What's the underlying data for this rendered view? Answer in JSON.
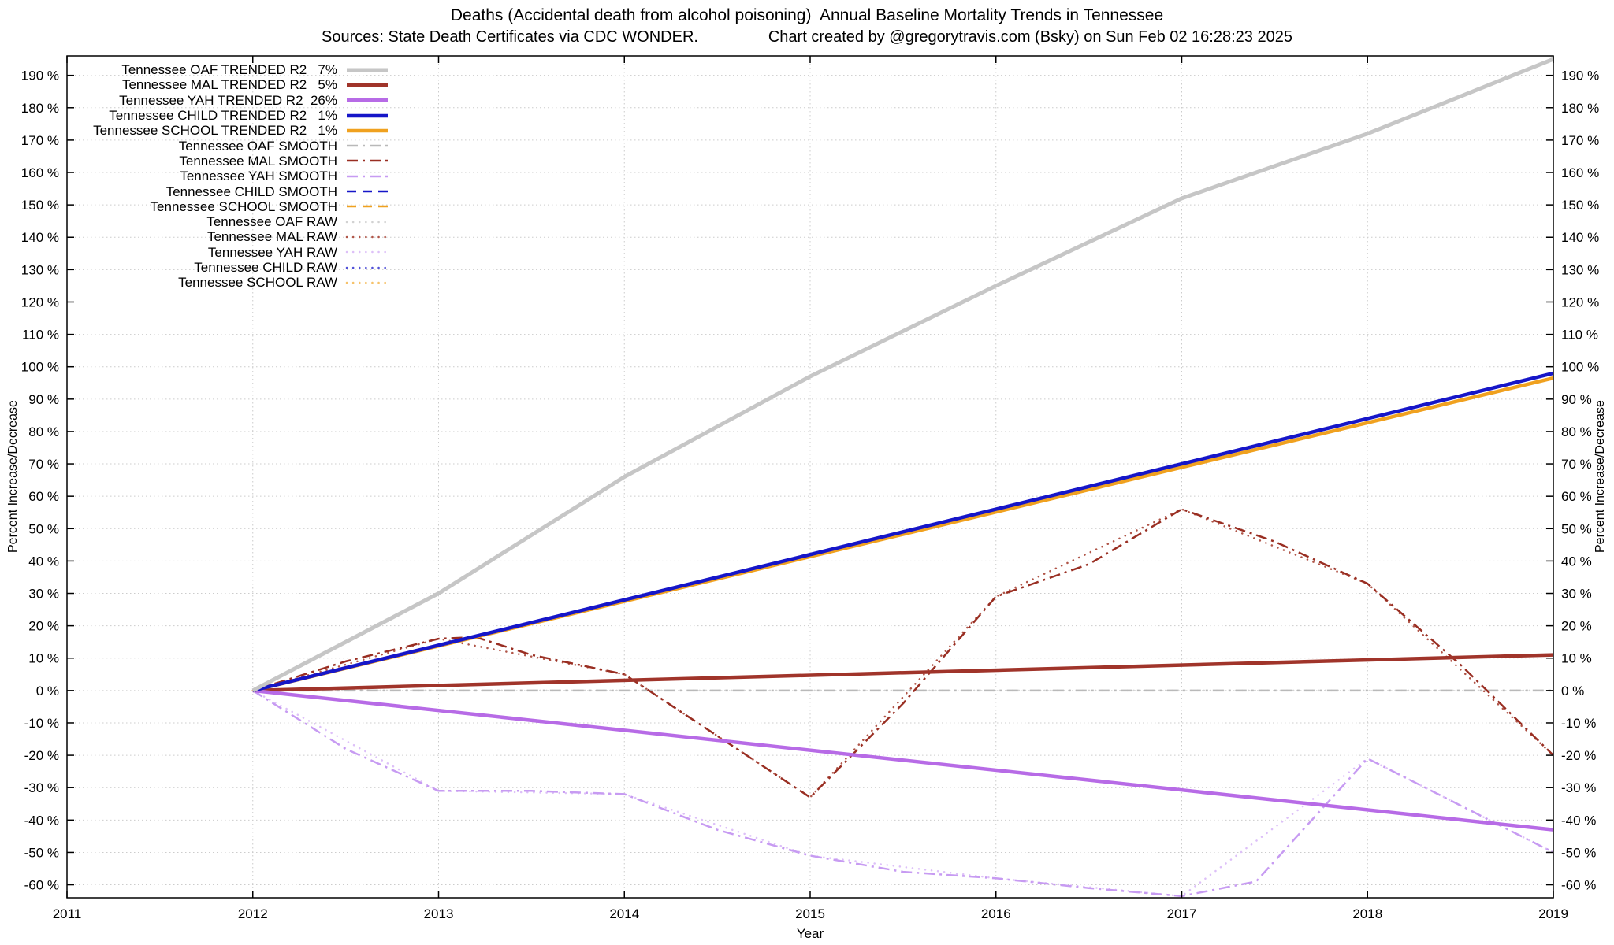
{
  "title": "Deaths (Accidental death from alcohol poisoning)  Annual Baseline Mortality Trends in Tennessee",
  "subtitle": "Sources: State Death Certificates via CDC WONDER.                Chart created by @gregorytravis.com (Bsky) on Sun Feb 02 16:28:23 2025",
  "chart_data": {
    "type": "line",
    "xlabel": "Year",
    "ylabel_left": "Percent Increase/Decrease",
    "ylabel_right": "Percent Increase/Decrease",
    "xlim": [
      2011,
      2019
    ],
    "ylim": [
      -64,
      196
    ],
    "x_ticks": [
      2011,
      2012,
      2013,
      2014,
      2015,
      2016,
      2017,
      2018,
      2019
    ],
    "y_ticks": [
      -60,
      -50,
      -40,
      -30,
      -20,
      -10,
      0,
      10,
      20,
      30,
      40,
      50,
      60,
      70,
      80,
      90,
      100,
      110,
      120,
      130,
      140,
      150,
      160,
      170,
      180,
      190
    ],
    "y_tick_suffix": " %",
    "grid": true,
    "grid_color": "#cccccc",
    "legend_position": "top-left",
    "series": [
      {
        "id": "oaf_trended",
        "legend": "Tennessee OAF TRENDED R2   7%",
        "color": "#c6c6c6",
        "style": "solid",
        "width": 5,
        "points": [
          [
            2012,
            0
          ],
          [
            2013,
            30
          ],
          [
            2014,
            66
          ],
          [
            2015,
            97
          ],
          [
            2016,
            125
          ],
          [
            2017,
            152
          ],
          [
            2018,
            172
          ],
          [
            2019,
            195
          ]
        ]
      },
      {
        "id": "mal_trended",
        "legend": "Tennessee MAL TRENDED R2   5%",
        "color": "#a0342a",
        "style": "solid",
        "width": 4.5,
        "points": [
          [
            2012,
            0
          ],
          [
            2019,
            11
          ]
        ]
      },
      {
        "id": "yah_trended",
        "legend": "Tennessee YAH TRENDED R2  26%",
        "color": "#b76be6",
        "style": "solid",
        "width": 4.5,
        "points": [
          [
            2012,
            0
          ],
          [
            2019,
            -43
          ]
        ]
      },
      {
        "id": "child_trended",
        "legend": "Tennessee CHILD TRENDED R2   1%",
        "color": "#1616c8",
        "style": "solid",
        "width": 4.5,
        "points": [
          [
            2012,
            0
          ],
          [
            2019,
            98
          ]
        ]
      },
      {
        "id": "school_trended",
        "legend": "Tennessee SCHOOL TRENDED R2   1%",
        "color": "#f0a11f",
        "style": "solid",
        "width": 4.5,
        "points": [
          [
            2012,
            0
          ],
          [
            2019,
            96.5
          ]
        ]
      },
      {
        "id": "oaf_smooth",
        "legend": "Tennessee OAF SMOOTH",
        "color": "#b9b9b9",
        "style": "dashdot",
        "width": 2.5,
        "points": [
          [
            2012,
            0
          ],
          [
            2019,
            0
          ]
        ]
      },
      {
        "id": "mal_smooth",
        "legend": "Tennessee MAL SMOOTH",
        "color": "#992e22",
        "style": "dashdot",
        "width": 2.5,
        "points": [
          [
            2012,
            0
          ],
          [
            2012.5,
            9
          ],
          [
            2013,
            16
          ],
          [
            2013.2,
            16.5
          ],
          [
            2013.5,
            11
          ],
          [
            2014,
            5
          ],
          [
            2014.5,
            -14
          ],
          [
            2015,
            -33
          ],
          [
            2015.5,
            -4
          ],
          [
            2016,
            29
          ],
          [
            2016.5,
            39
          ],
          [
            2017,
            56
          ],
          [
            2017.5,
            46
          ],
          [
            2018,
            33
          ],
          [
            2018.5,
            8
          ],
          [
            2019,
            -20
          ]
        ]
      },
      {
        "id": "yah_smooth",
        "legend": "Tennessee YAH SMOOTH",
        "color": "#c79bf2",
        "style": "dashdot",
        "width": 2.5,
        "points": [
          [
            2012,
            0
          ],
          [
            2012.5,
            -18
          ],
          [
            2013,
            -31
          ],
          [
            2013.5,
            -31
          ],
          [
            2014,
            -32
          ],
          [
            2014.5,
            -43
          ],
          [
            2015,
            -51
          ],
          [
            2015.5,
            -56
          ],
          [
            2016,
            -58
          ],
          [
            2016.5,
            -61
          ],
          [
            2017,
            -63.5
          ],
          [
            2017.4,
            -59
          ],
          [
            2018,
            -21
          ],
          [
            2019,
            -50
          ]
        ]
      },
      {
        "id": "child_smooth",
        "legend": "Tennessee CHILD SMOOTH",
        "color": "#1616c8",
        "style": "dash",
        "width": 2.5,
        "points": [
          [
            2012,
            0
          ],
          [
            2019,
            98
          ]
        ]
      },
      {
        "id": "school_smooth",
        "legend": "Tennessee SCHOOL SMOOTH",
        "color": "#f0a11f",
        "style": "dash",
        "width": 2.5,
        "points": [
          [
            2012,
            0
          ],
          [
            2019,
            96.5
          ]
        ]
      },
      {
        "id": "oaf_raw",
        "legend": "Tennessee OAF RAW",
        "color": "#d2d2d2",
        "style": "dot",
        "width": 2.5,
        "points": [
          [
            2012,
            0
          ],
          [
            2019,
            0
          ]
        ]
      },
      {
        "id": "mal_raw",
        "legend": "Tennessee MAL RAW",
        "color": "#b05548",
        "style": "dot",
        "width": 2.5,
        "points": [
          [
            2012,
            0
          ],
          [
            2013,
            16
          ],
          [
            2014,
            5
          ],
          [
            2015,
            -33
          ],
          [
            2016,
            29
          ],
          [
            2017,
            56
          ],
          [
            2018,
            33
          ],
          [
            2019,
            -20
          ]
        ]
      },
      {
        "id": "yah_raw",
        "legend": "Tennessee YAH RAW",
        "color": "#ddc0f8",
        "style": "dot",
        "width": 2.5,
        "points": [
          [
            2012,
            0
          ],
          [
            2013,
            -31
          ],
          [
            2014,
            -32
          ],
          [
            2015,
            -51
          ],
          [
            2016,
            -58
          ],
          [
            2017,
            -63.5
          ],
          [
            2018,
            -21
          ],
          [
            2019,
            -50
          ]
        ]
      },
      {
        "id": "child_raw",
        "legend": "Tennessee CHILD RAW",
        "color": "#5050d8",
        "style": "dot",
        "width": 2.5,
        "points": [
          [
            2012,
            0
          ],
          [
            2019,
            98
          ]
        ]
      },
      {
        "id": "school_raw",
        "legend": "Tennessee SCHOOL RAW",
        "color": "#f6c26a",
        "style": "dot",
        "width": 2.5,
        "points": [
          [
            2012,
            0
          ],
          [
            2019,
            96.5
          ]
        ]
      }
    ]
  }
}
